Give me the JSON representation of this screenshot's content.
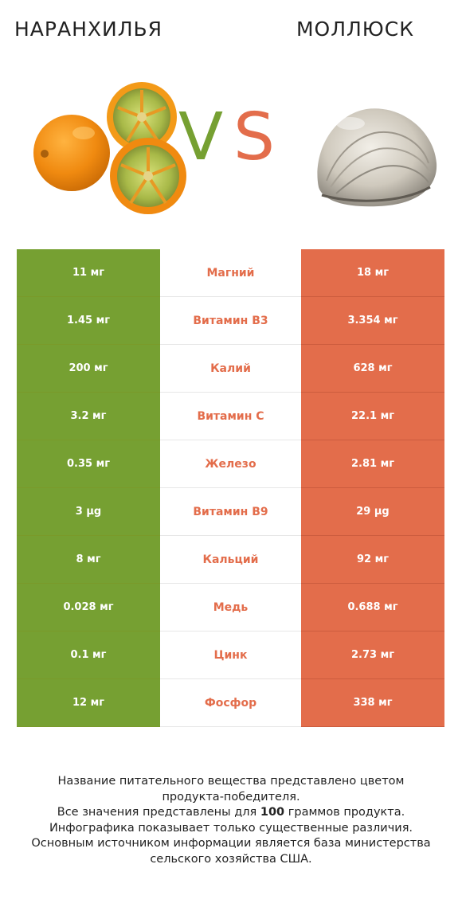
{
  "header": {
    "left_title": "НАРАНХИЛЬЯ",
    "right_title": "МОЛЛЮСК",
    "vs_v": "V",
    "vs_s": "S"
  },
  "colors": {
    "left": "#76a032",
    "right": "#e36d4b"
  },
  "images": {
    "left": "naranjilla-fruit-image",
    "right": "clam-shell-image"
  },
  "rows": [
    {
      "left": "11 мг",
      "nutrient": "Магний",
      "right": "18 мг",
      "winner": "right"
    },
    {
      "left": "1.45 мг",
      "nutrient": "Витамин B3",
      "right": "3.354 мг",
      "winner": "right"
    },
    {
      "left": "200 мг",
      "nutrient": "Калий",
      "right": "628 мг",
      "winner": "right"
    },
    {
      "left": "3.2 мг",
      "nutrient": "Витамин C",
      "right": "22.1 мг",
      "winner": "right"
    },
    {
      "left": "0.35 мг",
      "nutrient": "Железо",
      "right": "2.81 мг",
      "winner": "right"
    },
    {
      "left": "3 µg",
      "nutrient": "Витамин B9",
      "right": "29 µg",
      "winner": "right"
    },
    {
      "left": "8 мг",
      "nutrient": "Кальций",
      "right": "92 мг",
      "winner": "right"
    },
    {
      "left": "0.028 мг",
      "nutrient": "Медь",
      "right": "0.688 мг",
      "winner": "right"
    },
    {
      "left": "0.1 мг",
      "nutrient": "Цинк",
      "right": "2.73 мг",
      "winner": "right"
    },
    {
      "left": "12 мг",
      "nutrient": "Фосфор",
      "right": "338 мг",
      "winner": "right"
    }
  ],
  "footer": {
    "line1": "Название питательного вещества представлено цветом",
    "line2": "продукта-победителя.",
    "line3_pre": "Все значения представлены для ",
    "line3_bold": "100",
    "line3_post": " граммов продукта.",
    "line4": "Инфографика показывает только существенные различия.",
    "line5": "Основным источником информации является база министерства",
    "line6": "сельского хозяйства США."
  }
}
